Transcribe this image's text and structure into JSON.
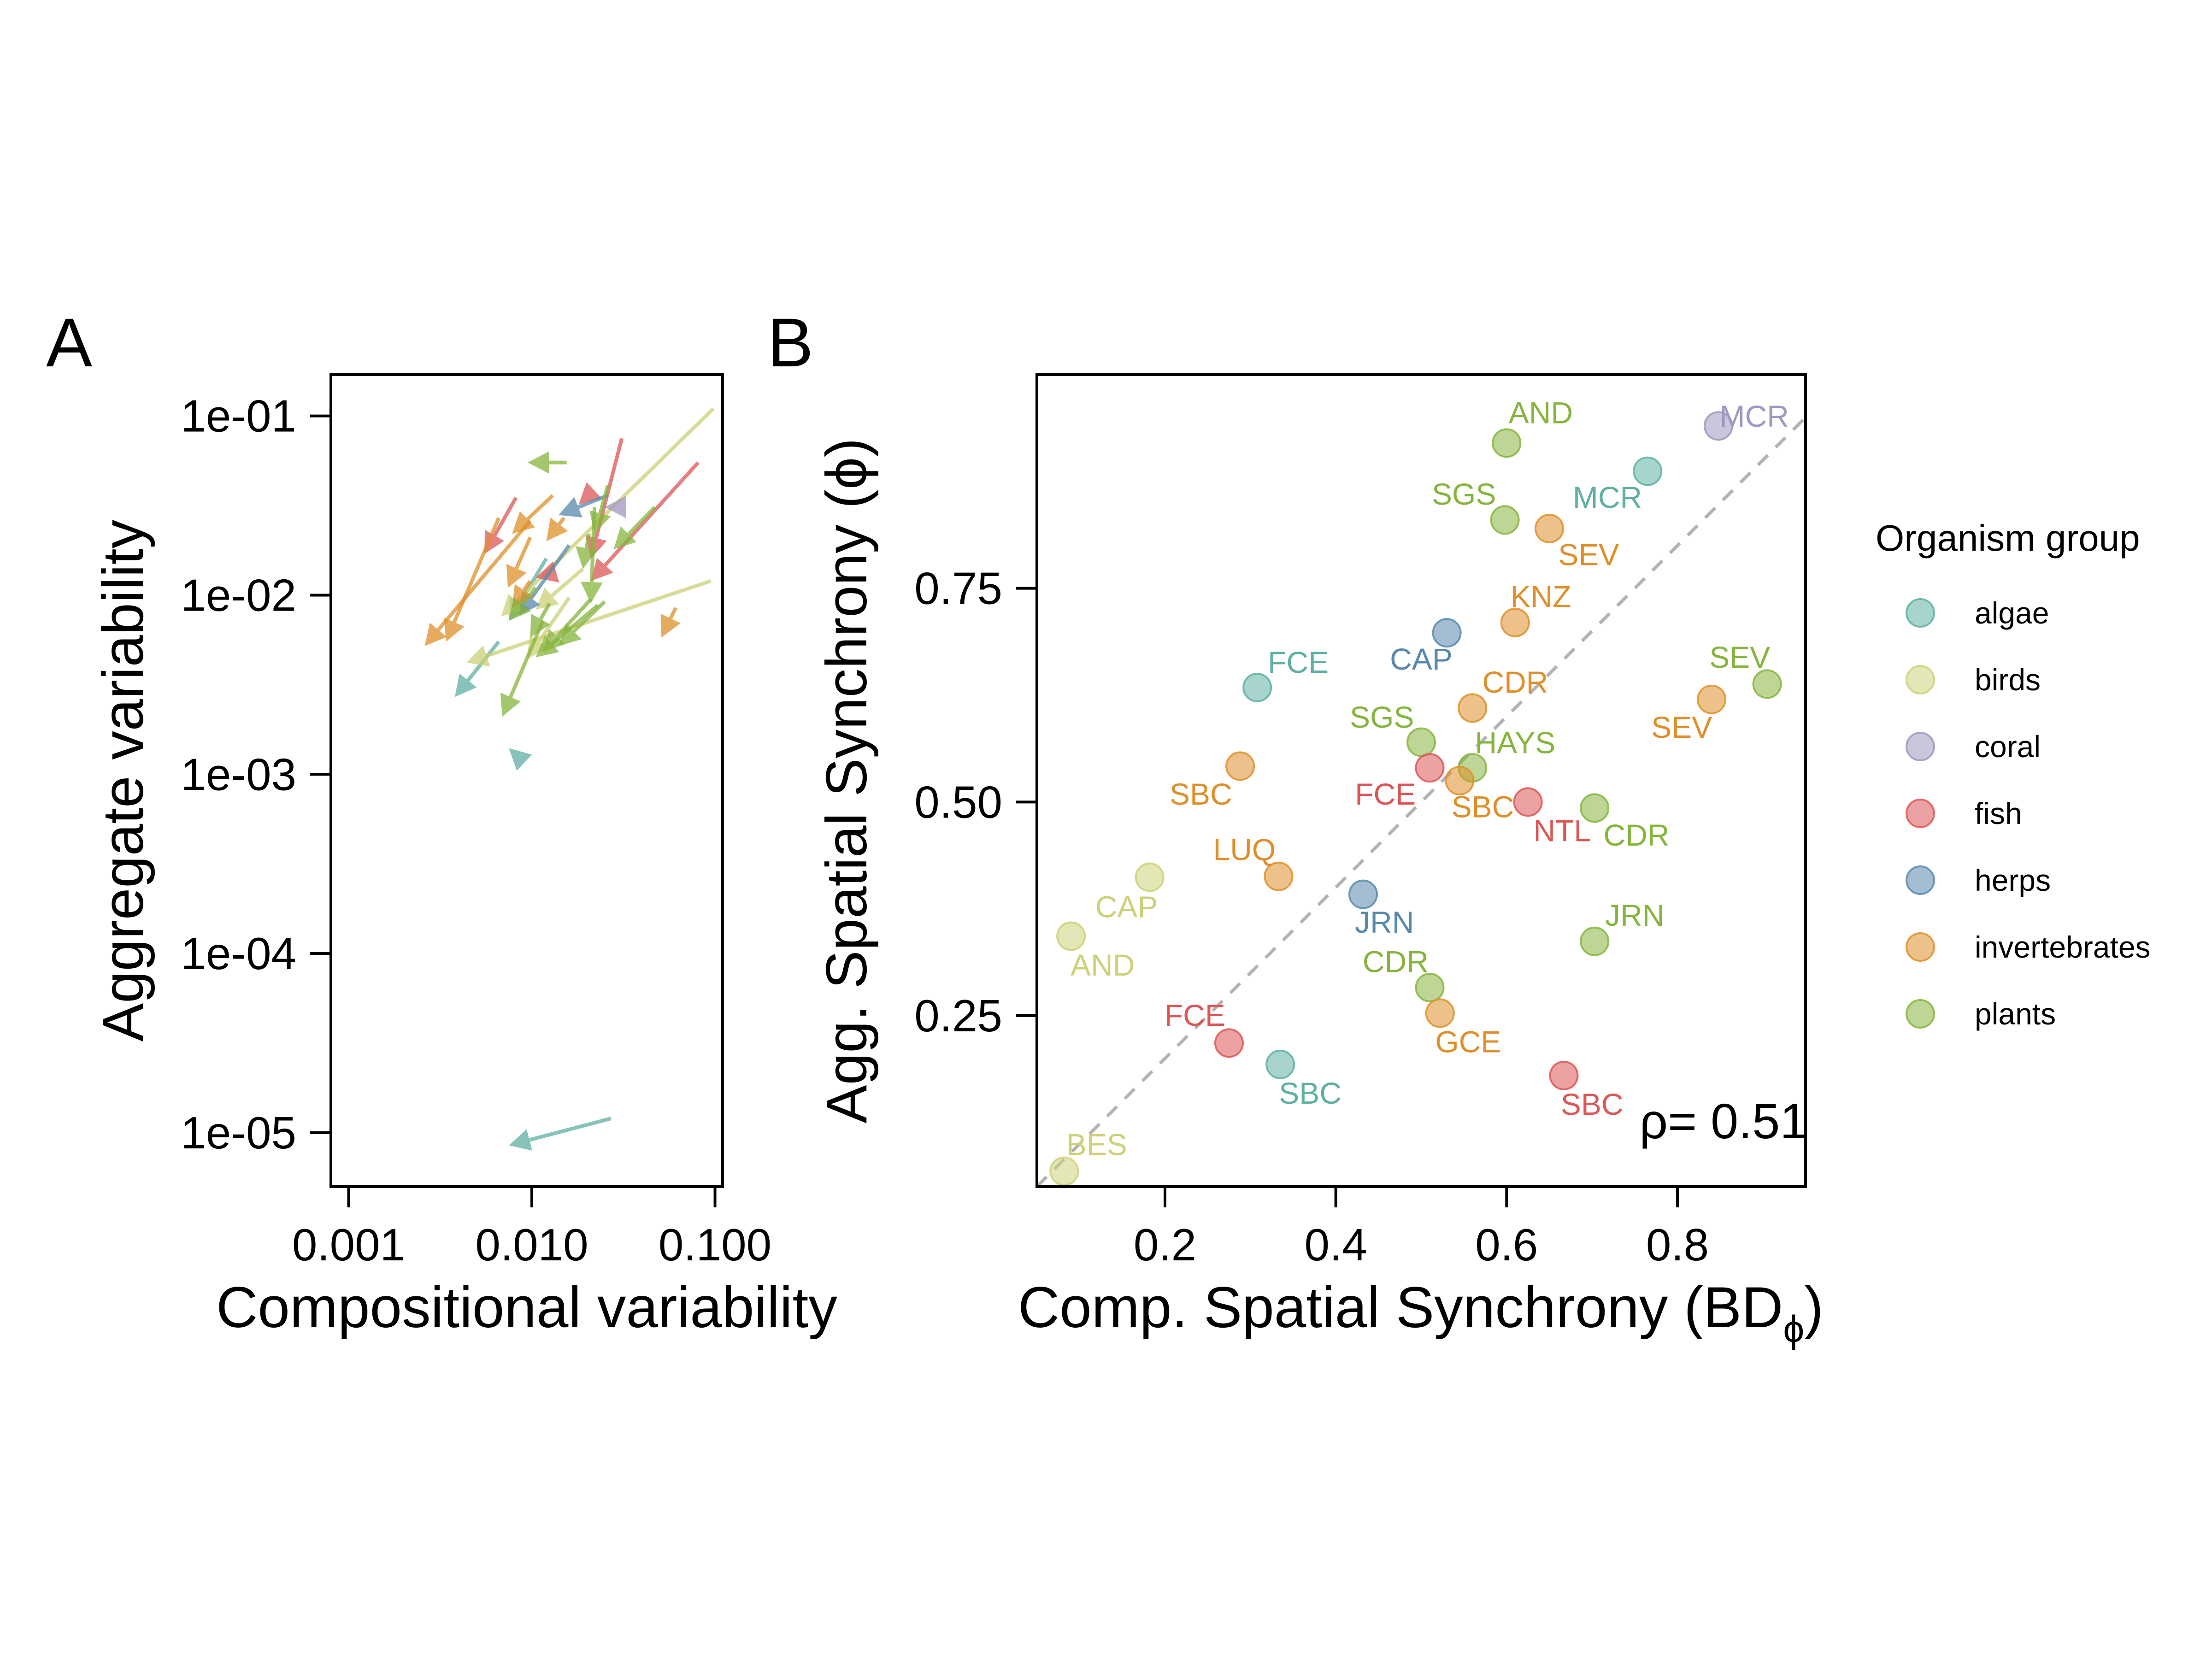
{
  "panel_a_tag": "A",
  "panel_b_tag": "B",
  "legend": {
    "title": "Organism group",
    "items": [
      {
        "group": "algae",
        "label": "algae",
        "color": "#5fb0a3"
      },
      {
        "group": "birds",
        "label": "birds",
        "color": "#cdd178"
      },
      {
        "group": "coral",
        "label": "coral",
        "color": "#9f98c0"
      },
      {
        "group": "fish",
        "label": "fish",
        "color": "#dd5656"
      },
      {
        "group": "herps",
        "label": "herps",
        "color": "#5889ad"
      },
      {
        "group": "invertebrates",
        "label": "invertebrates",
        "color": "#df8f2a"
      },
      {
        "group": "plants",
        "label": "plants",
        "color": "#86b53e"
      }
    ]
  },
  "chart_data": [
    {
      "type": "scatter",
      "panel": "A",
      "xlabel": "Compositional variability",
      "ylabel": "Aggregate variability",
      "xscale": "log",
      "yscale": "log",
      "xlim": [
        0.0008,
        0.11
      ],
      "ylim": [
        5e-06,
        0.17
      ],
      "xticks": [
        0.001,
        0.01,
        0.1
      ],
      "xtick_labels": [
        "0.001",
        "0.010",
        "0.100"
      ],
      "yticks": [
        1e-05,
        0.0001,
        0.001,
        0.01,
        0.1
      ],
      "ytick_labels": [
        "1e-05",
        "1e-04",
        "1e-03",
        "1e-02",
        "1e-01"
      ],
      "arrows": [
        {
          "group": "algae",
          "from": [
            0.027,
            1.2e-05
          ],
          "to": [
            0.0075,
            8.5e-06
          ]
        },
        {
          "group": "algae",
          "from": [
            0.0066,
            0.0055
          ],
          "to": [
            0.0038,
            0.0027
          ]
        },
        {
          "group": "algae",
          "from": [
            0.012,
            0.016
          ],
          "to": [
            0.0075,
            0.0072
          ]
        },
        {
          "group": "algae",
          "from": [
            0.0088,
            0.0012
          ],
          "to": [
            0.0075,
            0.0014
          ]
        },
        {
          "group": "birds",
          "from": [
            0.098,
            0.11
          ],
          "to": [
            0.0068,
            0.0076
          ]
        },
        {
          "group": "birds",
          "from": [
            0.095,
            0.012
          ],
          "to": [
            0.0044,
            0.0042
          ]
        },
        {
          "group": "birds",
          "from": [
            0.016,
            0.0097
          ],
          "to": [
            0.0094,
            0.0044
          ]
        },
        {
          "group": "birds",
          "from": [
            0.019,
            0.014
          ],
          "to": [
            0.0105,
            0.0083
          ]
        },
        {
          "group": "coral",
          "from": [
            0.028,
            0.031
          ],
          "to": [
            0.025,
            0.031
          ]
        },
        {
          "group": "fish",
          "from": [
            0.031,
            0.075
          ],
          "to": [
            0.021,
            0.016
          ]
        },
        {
          "group": "fish",
          "from": [
            0.081,
            0.055
          ],
          "to": [
            0.021,
            0.012
          ]
        },
        {
          "group": "fish",
          "from": [
            0.0082,
            0.035
          ],
          "to": [
            0.0055,
            0.017
          ]
        },
        {
          "group": "fish",
          "from": [
            0.021,
            0.037
          ],
          "to": [
            0.018,
            0.032
          ]
        },
        {
          "group": "fish",
          "from": [
            0.012,
            0.013
          ],
          "to": [
            0.0105,
            0.0125
          ]
        },
        {
          "group": "herps",
          "from": [
            0.016,
            0.019
          ],
          "to": [
            0.0085,
            0.0077
          ]
        },
        {
          "group": "herps",
          "from": [
            0.026,
            0.036
          ],
          "to": [
            0.014,
            0.028
          ]
        },
        {
          "group": "invertebrates",
          "from": [
            0.0098,
            0.026
          ],
          "to": [
            0.0026,
            0.0052
          ]
        },
        {
          "group": "invertebrates",
          "from": [
            0.0066,
            0.027
          ],
          "to": [
            0.0034,
            0.0055
          ]
        },
        {
          "group": "invertebrates",
          "from": [
            0.013,
            0.036
          ],
          "to": [
            0.0078,
            0.022
          ]
        },
        {
          "group": "invertebrates",
          "from": [
            0.0098,
            0.021
          ],
          "to": [
            0.0074,
            0.011
          ]
        },
        {
          "group": "invertebrates",
          "from": [
            0.0098,
            0.012
          ],
          "to": [
            0.0078,
            0.0085
          ]
        },
        {
          "group": "invertebrates",
          "from": [
            0.015,
            0.027
          ],
          "to": [
            0.012,
            0.02
          ]
        },
        {
          "group": "invertebrates",
          "from": [
            0.061,
            0.0085
          ],
          "to": [
            0.051,
            0.0058
          ]
        },
        {
          "group": "plants",
          "from": [
            0.0115,
            0.0072
          ],
          "to": [
            0.0069,
            0.0021
          ]
        },
        {
          "group": "plants",
          "from": [
            0.023,
            0.0088
          ],
          "to": [
            0.0105,
            0.0045
          ]
        },
        {
          "group": "plants",
          "from": [
            0.021,
            0.0095
          ],
          "to": [
            0.0115,
            0.0048
          ]
        },
        {
          "group": "plants",
          "from": [
            0.025,
            0.0092
          ],
          "to": [
            0.014,
            0.0052
          ]
        },
        {
          "group": "plants",
          "from": [
            0.047,
            0.031
          ],
          "to": [
            0.028,
            0.018
          ]
        },
        {
          "group": "plants",
          "from": [
            0.026,
            0.041
          ],
          "to": [
            0.022,
            0.022
          ]
        },
        {
          "group": "plants",
          "from": [
            0.0155,
            0.055
          ],
          "to": [
            0.0095,
            0.055
          ]
        },
        {
          "group": "plants",
          "from": [
            0.0105,
            0.011
          ],
          "to": [
            0.0075,
            0.0072
          ]
        },
        {
          "group": "plants",
          "from": [
            0.0125,
            0.009
          ],
          "to": [
            0.0098,
            0.0058
          ]
        },
        {
          "group": "plants",
          "from": [
            0.022,
            0.031
          ],
          "to": [
            0.021,
            0.009
          ]
        },
        {
          "group": "plants",
          "from": [
            0.0205,
            0.022
          ],
          "to": [
            0.019,
            0.014
          ]
        }
      ]
    },
    {
      "type": "scatter",
      "panel": "B",
      "xlabel": "Comp. Spatial Synchrony (BD",
      "xlabel_sub": "ϕ",
      "xlabel_close": ")",
      "ylabel": "Agg. Spatial Synchrony (ϕ)",
      "xlim": [
        0.05,
        0.95
      ],
      "ylim": [
        0.05,
        1.0
      ],
      "xticks": [
        0.2,
        0.4,
        0.6,
        0.8
      ],
      "xtick_labels": [
        "0.2",
        "0.4",
        "0.6",
        "0.8"
      ],
      "yticks": [
        0.25,
        0.5,
        0.75
      ],
      "ytick_labels": [
        "0.25",
        "0.50",
        "0.75"
      ],
      "reference_line": {
        "slope": 1,
        "intercept": 0,
        "style": "dashed",
        "color": "#b3b3b3"
      },
      "annotation": "ρ= 0.51",
      "points": [
        {
          "site": "AND",
          "group": "plants",
          "x": 0.6,
          "y": 0.92,
          "lx": 0.64,
          "ly": 0.956
        },
        {
          "site": "MCR",
          "group": "coral",
          "x": 0.848,
          "y": 0.94,
          "lx": 0.89,
          "ly": 0.952
        },
        {
          "site": "MCR",
          "group": "algae",
          "x": 0.765,
          "y": 0.887,
          "lx": 0.718,
          "ly": 0.857
        },
        {
          "site": "SGS",
          "group": "plants",
          "x": 0.598,
          "y": 0.83,
          "lx": 0.55,
          "ly": 0.861
        },
        {
          "site": "SEV",
          "group": "invertebrates",
          "x": 0.65,
          "y": 0.82,
          "lx": 0.696,
          "ly": 0.79
        },
        {
          "site": "KNZ",
          "group": "invertebrates",
          "x": 0.61,
          "y": 0.71,
          "lx": 0.64,
          "ly": 0.741
        },
        {
          "site": "CAP",
          "group": "herps",
          "x": 0.53,
          "y": 0.698,
          "lx": 0.5,
          "ly": 0.668
        },
        {
          "site": "FCE",
          "group": "algae",
          "x": 0.308,
          "y": 0.634,
          "lx": 0.356,
          "ly": 0.664
        },
        {
          "site": "CDR",
          "group": "invertebrates",
          "x": 0.56,
          "y": 0.61,
          "lx": 0.61,
          "ly": 0.641
        },
        {
          "site": "SEV",
          "group": "plants",
          "x": 0.905,
          "y": 0.638,
          "lx": 0.873,
          "ly": 0.67
        },
        {
          "site": "SEV",
          "group": "invertebrates",
          "x": 0.84,
          "y": 0.62,
          "lx": 0.805,
          "ly": 0.588
        },
        {
          "site": "SGS",
          "group": "plants",
          "x": 0.5,
          "y": 0.57,
          "lx": 0.454,
          "ly": 0.6
        },
        {
          "site": "HAYS",
          "group": "plants",
          "x": 0.56,
          "y": 0.54,
          "lx": 0.61,
          "ly": 0.57
        },
        {
          "site": "FCE",
          "group": "fish",
          "x": 0.51,
          "y": 0.54,
          "lx": 0.458,
          "ly": 0.51
        },
        {
          "site": "SBC",
          "group": "invertebrates",
          "x": 0.545,
          "y": 0.525,
          "lx": 0.572,
          "ly": 0.495
        },
        {
          "site": "SBC",
          "group": "invertebrates",
          "x": 0.288,
          "y": 0.542,
          "lx": 0.242,
          "ly": 0.51
        },
        {
          "site": "NTL",
          "group": "fish",
          "x": 0.625,
          "y": 0.5,
          "lx": 0.665,
          "ly": 0.467
        },
        {
          "site": "CDR",
          "group": "plants",
          "x": 0.703,
          "y": 0.493,
          "lx": 0.752,
          "ly": 0.462
        },
        {
          "site": "LUQ",
          "group": "invertebrates",
          "x": 0.333,
          "y": 0.413,
          "lx": 0.293,
          "ly": 0.445
        },
        {
          "site": "CAP",
          "group": "birds",
          "x": 0.182,
          "y": 0.412,
          "lx": 0.155,
          "ly": 0.378
        },
        {
          "site": "JRN",
          "group": "herps",
          "x": 0.432,
          "y": 0.392,
          "lx": 0.457,
          "ly": 0.36
        },
        {
          "site": "AND",
          "group": "birds",
          "x": 0.09,
          "y": 0.343,
          "lx": 0.127,
          "ly": 0.31
        },
        {
          "site": "JRN",
          "group": "plants",
          "x": 0.703,
          "y": 0.337,
          "lx": 0.75,
          "ly": 0.368
        },
        {
          "site": "CDR",
          "group": "plants",
          "x": 0.51,
          "y": 0.283,
          "lx": 0.47,
          "ly": 0.314
        },
        {
          "site": "GCE",
          "group": "invertebrates",
          "x": 0.522,
          "y": 0.253,
          "lx": 0.555,
          "ly": 0.22
        },
        {
          "site": "FCE",
          "group": "fish",
          "x": 0.275,
          "y": 0.218,
          "lx": 0.235,
          "ly": 0.251
        },
        {
          "site": "SBC",
          "group": "algae",
          "x": 0.335,
          "y": 0.193,
          "lx": 0.37,
          "ly": 0.16
        },
        {
          "site": "SBC",
          "group": "fish",
          "x": 0.667,
          "y": 0.18,
          "lx": 0.7,
          "ly": 0.147
        },
        {
          "site": "BES",
          "group": "birds",
          "x": 0.082,
          "y": 0.068,
          "lx": 0.12,
          "ly": 0.1
        }
      ]
    }
  ]
}
